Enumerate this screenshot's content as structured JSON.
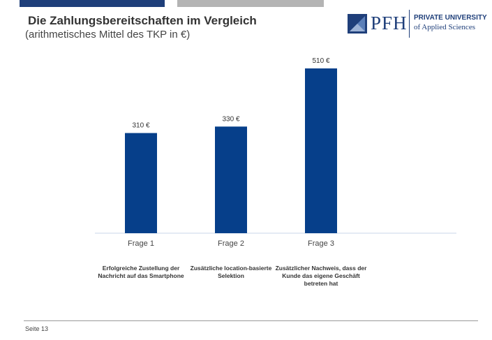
{
  "header": {
    "title": "Die Zahlungsbereitschaften im Vergleich",
    "subtitle": "(arithmetisches Mittel des TKP in €)"
  },
  "logo": {
    "abbr": "PFH",
    "line1": "PRIVATE UNIVERSITY",
    "line2": "of Applied Sciences"
  },
  "chart_data": {
    "type": "bar",
    "title": "",
    "xlabel": "",
    "ylabel": "",
    "ylim": [
      0,
      510
    ],
    "grid": false,
    "categories": [
      "Frage 1",
      "Frage 2",
      "Frage 3"
    ],
    "values": [
      310,
      330,
      510
    ],
    "data_labels": [
      "310 €",
      "330 €",
      "510 €"
    ],
    "bar_color": "#063f8a"
  },
  "descriptions": [
    "Erfolgreiche Zustellung der Nachricht auf das Smartphone",
    "Zusätzliche location-basierte Selektion",
    "Zusätzlicher Nachweis, dass der Kunde das eigene Geschäft betreten hat"
  ],
  "footer": {
    "page": "Seite 13"
  },
  "colors": {
    "accent": "#1f3f7a",
    "grey_bar": "#b4b4b4"
  }
}
